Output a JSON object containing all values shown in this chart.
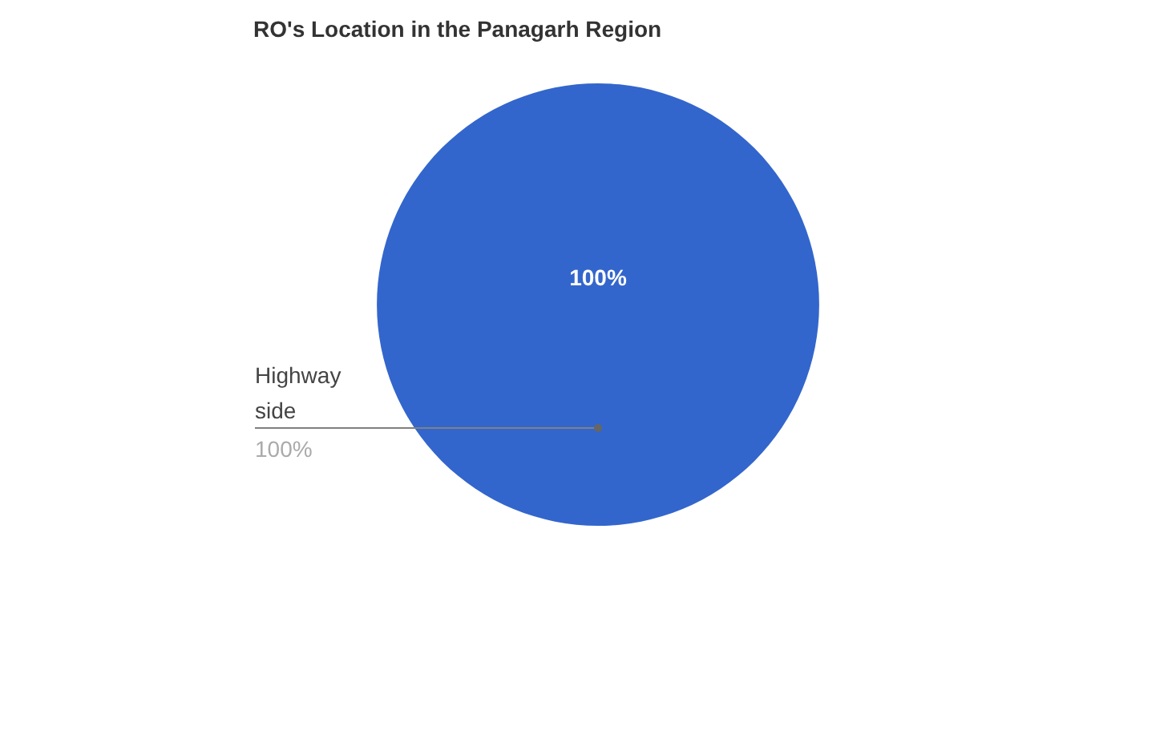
{
  "chart_data": {
    "type": "pie",
    "title": "RO's Location in the Panagarh Region",
    "categories": [
      "Highway side"
    ],
    "values": [
      100
    ],
    "value_labels": [
      "100%"
    ],
    "colors": [
      "#3366cc"
    ],
    "legend": false
  }
}
